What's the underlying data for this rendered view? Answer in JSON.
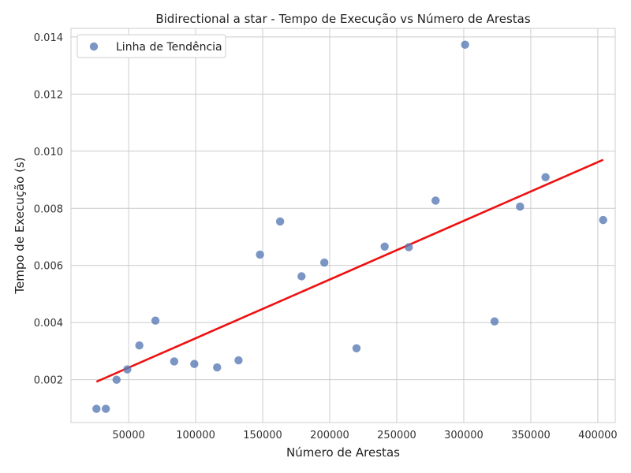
{
  "chart_data": {
    "type": "scatter",
    "title": "Bidirectional a star - Tempo de Execução vs Número de Arestas",
    "xlabel": "Número de Arestas",
    "ylabel": "Tempo de Execução (s)",
    "xlim": [
      7000,
      413000
    ],
    "ylim": [
      0.0005,
      0.0143
    ],
    "x_ticks": [
      50000,
      100000,
      150000,
      200000,
      250000,
      300000,
      350000,
      400000
    ],
    "x_tick_labels": [
      "50000",
      "100000",
      "150000",
      "200000",
      "250000",
      "300000",
      "350000",
      "400000"
    ],
    "y_ticks": [
      0.002,
      0.004,
      0.006,
      0.008,
      0.01,
      0.012,
      0.014
    ],
    "y_tick_labels": [
      "0.002",
      "0.004",
      "0.006",
      "0.008",
      "0.010",
      "0.012",
      "0.014"
    ],
    "grid": true,
    "legend": {
      "position": "top-left",
      "entries": [
        "Linha de Tendência"
      ]
    },
    "points": {
      "name": "Linha de Tendência",
      "color": "#5a7bb5",
      "x": [
        26000,
        33000,
        41000,
        49000,
        58000,
        70000,
        84000,
        99000,
        116000,
        132000,
        148000,
        163000,
        179000,
        196000,
        220000,
        241000,
        259000,
        279000,
        301000,
        323000,
        342000,
        361000,
        404000
      ],
      "y": [
        0.00098,
        0.00098,
        0.002,
        0.00236,
        0.0032,
        0.00407,
        0.00264,
        0.00255,
        0.00243,
        0.00268,
        0.00638,
        0.00754,
        0.00562,
        0.0061,
        0.0031,
        0.00666,
        0.00664,
        0.00827,
        0.01373,
        0.00404,
        0.00806,
        0.00909,
        0.00759
      ]
    },
    "trend_line": {
      "color": "#ee1111",
      "x": [
        26000,
        404000
      ],
      "y": [
        0.00193,
        0.0097
      ]
    }
  }
}
